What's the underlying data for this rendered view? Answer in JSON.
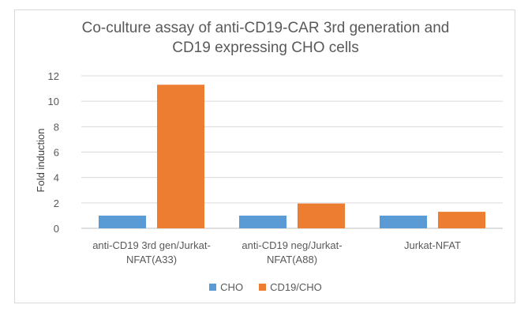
{
  "chart_data": {
    "type": "bar",
    "title_lines": [
      "Co-culture assay of anti-CD19-CAR 3rd generation  and",
      "CD19 expressing CHO cells"
    ],
    "categories": [
      [
        "anti-CD19 3rd gen/Jurkat-",
        "NFAT(A33)"
      ],
      [
        "anti-CD19 neg/Jurkat-",
        "NFAT(A88)"
      ],
      [
        "Jurkat-NFAT"
      ]
    ],
    "series": [
      {
        "name": "CHO",
        "color": "#5b9bd5",
        "values": [
          1.0,
          1.0,
          1.0
        ]
      },
      {
        "name": "CD19/CHO",
        "color": "#ed7d31",
        "values": [
          11.3,
          1.95,
          1.3
        ]
      }
    ],
    "ylabel": "Fold induction",
    "xlabel": "",
    "ylim": [
      0,
      12
    ],
    "yticks": [
      "0",
      "2",
      "4",
      "6",
      "8",
      "10",
      "12"
    ],
    "grid": true,
    "legend_position": "bottom"
  }
}
